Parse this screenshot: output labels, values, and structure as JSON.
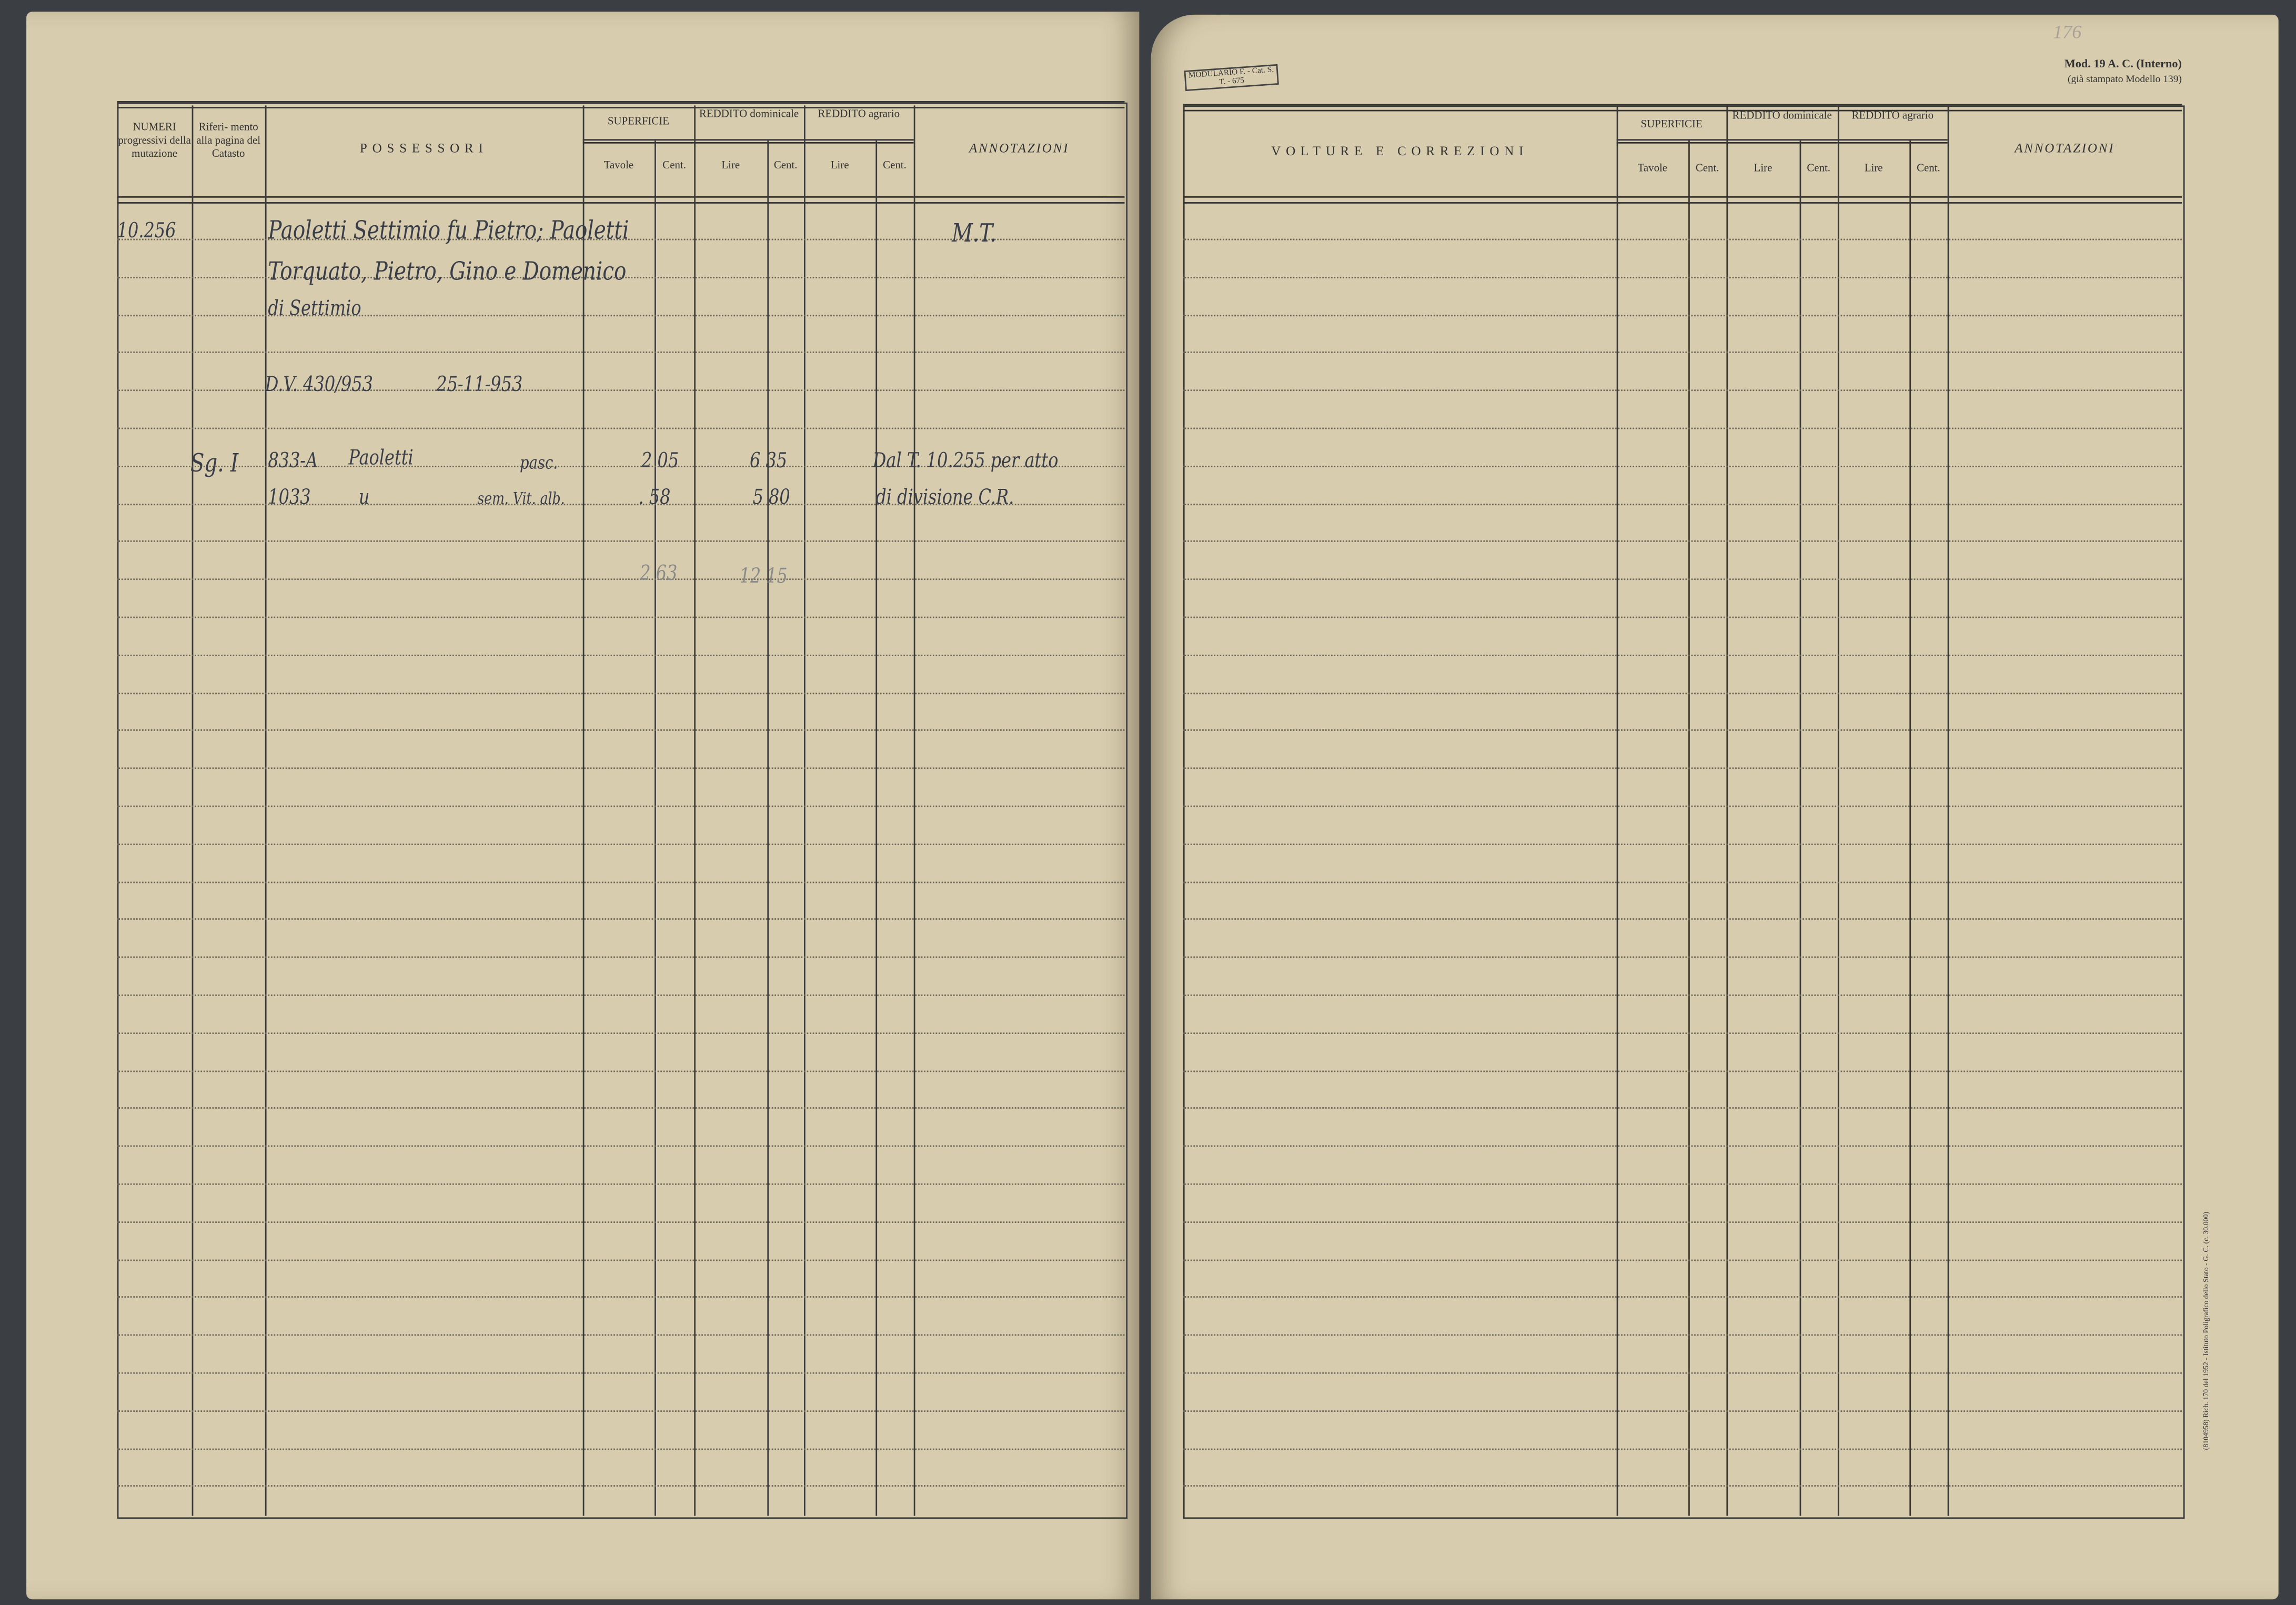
{
  "left_page": {
    "headers": {
      "numeri": "NUMERI progressivi della mutazione",
      "riferimento": "Riferi- mento alla pagina del Catasto",
      "possessori": "POSSESSORI",
      "superficie": "SUPERFICIE",
      "reddito_dominicale": "REDDITO dominicale",
      "reddito_agrario": "REDDITO agrario",
      "tavole": "Tavole",
      "cent": "Cent.",
      "lire": "Lire",
      "annotazioni": "ANNOTAZIONI"
    },
    "entries": {
      "numero": "10.256",
      "possessori_1": "Paoletti Settimio fu Pietro; Paoletti",
      "possessori_2": "Torquato, Pietro, Gino e Domenico",
      "possessori_3": "di Settimio",
      "dv": "D.V. 430/953",
      "date": "25-11-953",
      "riferimento": "Sg. I",
      "parcels": [
        {
          "particella": "833-A",
          "nome": "Paoletti",
          "qualita": "pasc.",
          "superficie": "2 05",
          "reddito": "6 35"
        },
        {
          "particella": "1033",
          "nome": "u",
          "qualita": "sem. Vit. alb.",
          "superficie": ". 58",
          "reddito": "5 80"
        }
      ],
      "total_superficie": "2 63",
      "total_reddito": "12 15",
      "annotazione_1": "M.T.",
      "annotazione_2": "Dal T. 10.255 per atto",
      "annotazione_3": "di divisione C.R."
    }
  },
  "right_page": {
    "page_number": "176",
    "stamp": "MODULARIO F. - Cat. S. T. - 675",
    "model": "Mod. 19 A. C. (Interno)",
    "model_note": "(già stampato Modello 139)",
    "headers": {
      "volture": "VOLTURE E CORREZIONI",
      "superficie": "SUPERFICIE",
      "reddito_dominicale": "REDDITO dominicale",
      "reddito_agrario": "REDDITO agrario",
      "tavole": "Tavole",
      "cent": "Cent.",
      "lire": "Lire",
      "annotazioni": "ANNOTAZIONI"
    },
    "printer_note": "(8104958) Rich. 170 del 1952 - Istituto Poligrafico dello Stato - G. C. (c. 30.000)"
  },
  "colors": {
    "paper": "#d8ccae",
    "ink": "#3a3e48",
    "background": "#3b3e43"
  }
}
